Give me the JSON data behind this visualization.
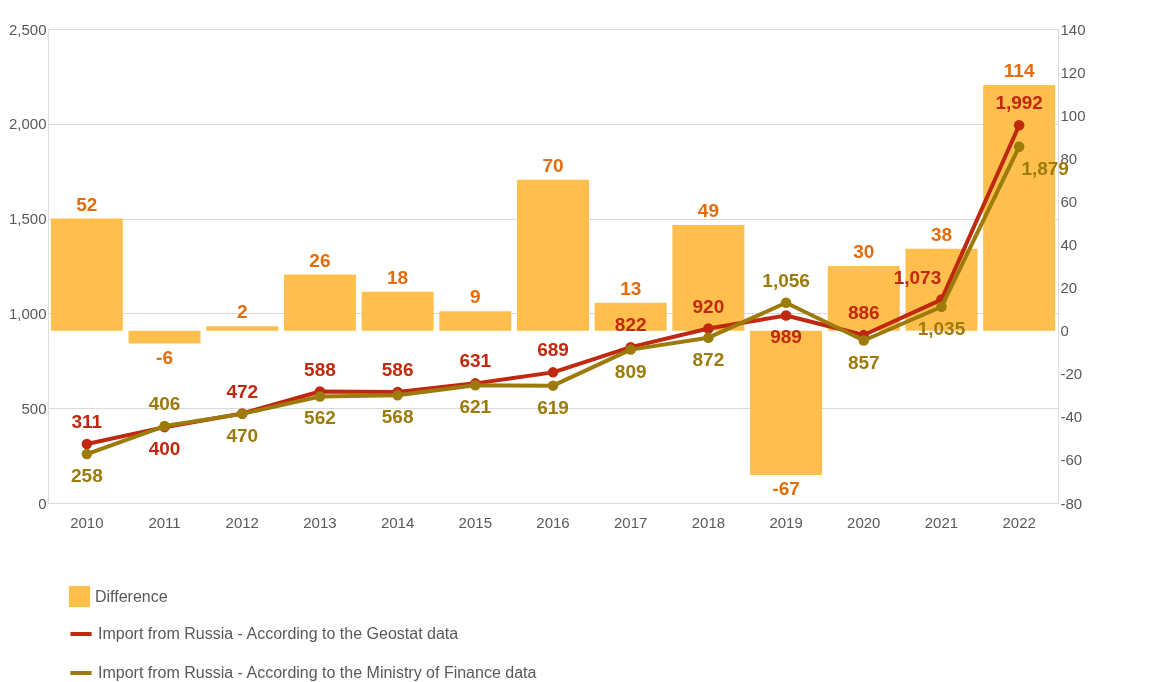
{
  "chart_data": {
    "type": "line",
    "categories": [
      "2010",
      "2011",
      "2012",
      "2013",
      "2014",
      "2015",
      "2016",
      "2017",
      "2018",
      "2019",
      "2020",
      "2021",
      "2022"
    ],
    "series": [
      {
        "name": "Difference",
        "type": "bar",
        "axis": "y2",
        "color": "#ffbf4d",
        "values": [
          52,
          -6,
          2,
          26,
          18,
          9,
          70,
          13,
          49,
          -67,
          30,
          38,
          114
        ],
        "value_labels": [
          "52",
          "-6",
          "2",
          "26",
          "18",
          "9",
          "70",
          "13",
          "49",
          "-67",
          "30",
          "38",
          "114"
        ]
      },
      {
        "name": "Import from Russia - According to the Geostat data",
        "color": "#c0280f",
        "values": [
          311,
          400,
          472,
          588,
          586,
          631,
          689,
          822,
          920,
          989,
          886,
          1073,
          1992
        ],
        "value_labels": [
          "311",
          "400",
          "472",
          "588",
          "586",
          "631",
          "689",
          "822",
          "920",
          "989",
          "886",
          "1,073",
          "1,992"
        ]
      },
      {
        "name": "Import from Russia - According to the Ministry of Finance data",
        "color": "#9c7b0c",
        "values": [
          258,
          406,
          470,
          562,
          568,
          621,
          619,
          809,
          872,
          1056,
          857,
          1035,
          1879
        ],
        "value_labels": [
          "258",
          "406",
          "470",
          "562",
          "568",
          "621",
          "619",
          "809",
          "872",
          "1,056",
          "857",
          "1,035",
          "1,879"
        ]
      }
    ],
    "ylim": [
      0,
      2500
    ],
    "yticks": [
      0,
      {
        "value": 500,
        "label": "500"
      },
      {
        "value": 1000,
        "label": "1,000"
      },
      {
        "value": 1500,
        "label": "1,500"
      },
      {
        "value": 2000,
        "label": "2,000"
      },
      {
        "value": 2500,
        "label": "2,500"
      }
    ],
    "y2lim": [
      -80,
      140
    ],
    "y2ticks": [
      -80,
      -60,
      -40,
      -20,
      0,
      20,
      40,
      60,
      80,
      100,
      120,
      140
    ],
    "grid": "y",
    "legend": "bottom",
    "marker": "circle",
    "line_style": "solid"
  }
}
